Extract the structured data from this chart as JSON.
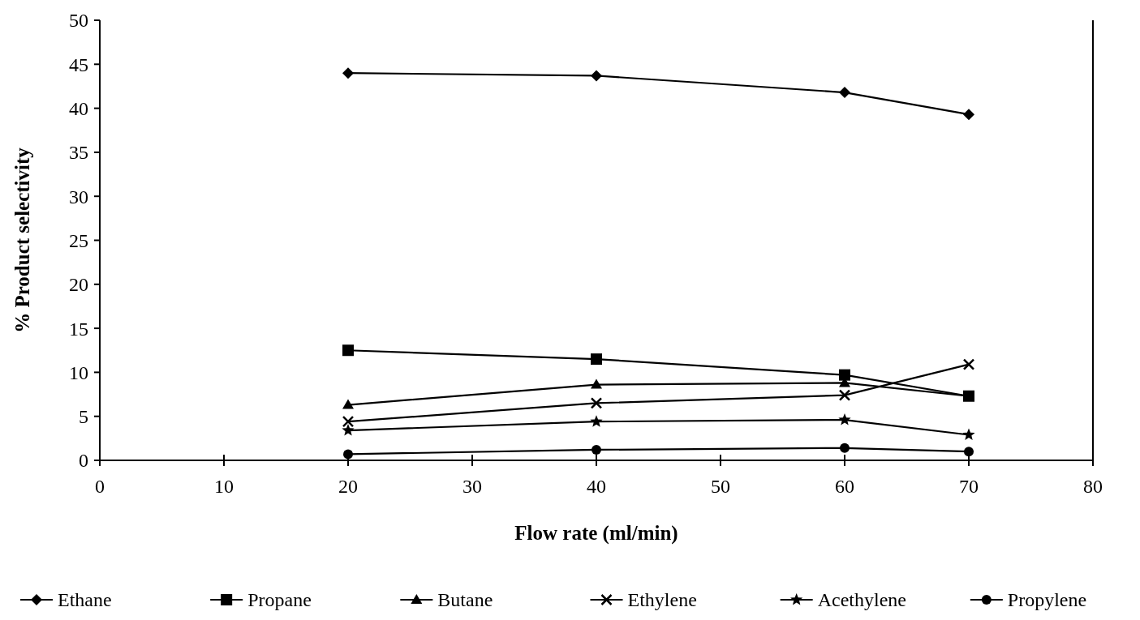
{
  "chart_data": {
    "type": "line",
    "xlabel": "Flow rate (ml/min)",
    "ylabel": "% Product selectivity",
    "x": [
      20,
      40,
      60,
      70
    ],
    "xlim": [
      0,
      80
    ],
    "xticks": [
      0,
      10,
      20,
      30,
      40,
      50,
      60,
      70,
      80
    ],
    "ylim": [
      0,
      50
    ],
    "yticks": [
      0,
      5,
      10,
      15,
      20,
      25,
      30,
      35,
      40,
      45,
      50
    ],
    "grid": false,
    "legend": "bottom",
    "line_style": "solid",
    "series": [
      {
        "name": "Ethane",
        "color": "#000000",
        "marker": "diamond",
        "values": [
          44.0,
          43.7,
          41.8,
          39.3
        ]
      },
      {
        "name": "Propane",
        "color": "#000000",
        "marker": "square",
        "values": [
          12.5,
          11.5,
          9.7,
          7.3
        ]
      },
      {
        "name": "Butane",
        "color": "#000000",
        "marker": "triangle",
        "values": [
          6.3,
          8.6,
          8.8,
          7.3
        ]
      },
      {
        "name": "Ethylene",
        "color": "#000000",
        "marker": "cross",
        "values": [
          4.4,
          6.5,
          7.4,
          10.9
        ]
      },
      {
        "name": "Acethylene",
        "color": "#000000",
        "marker": "star",
        "values": [
          3.4,
          4.4,
          4.6,
          2.9
        ]
      },
      {
        "name": "Propylene",
        "color": "#000000",
        "marker": "circle",
        "values": [
          0.7,
          1.2,
          1.4,
          1.0
        ]
      }
    ]
  }
}
